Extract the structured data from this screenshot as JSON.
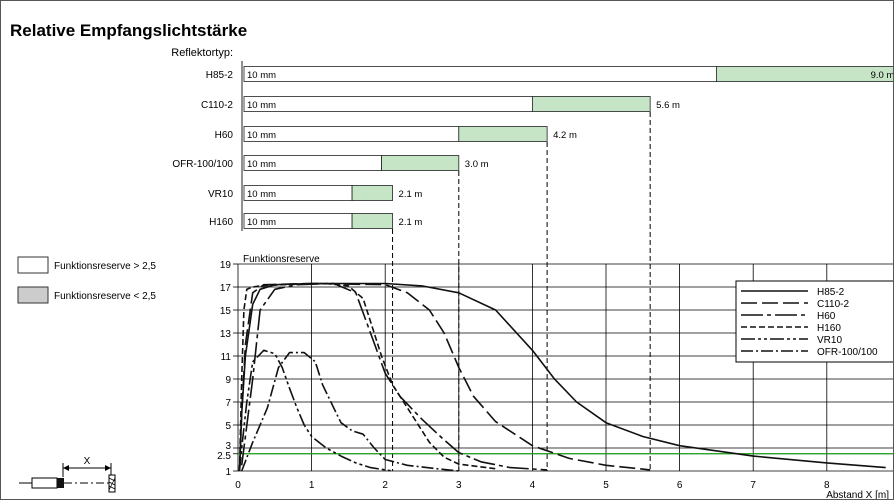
{
  "title": "Relative Empfangslichtstärke",
  "legend_boxes": [
    {
      "label": "Funktionsreserve > 2,5",
      "color": "#ffffff"
    },
    {
      "label": "Funktionsreserve < 2,5",
      "color": "#cccccc"
    }
  ],
  "colors": {
    "green": "#c6e5c6",
    "green_line": "#119911",
    "axis": "#000000"
  },
  "chart_data": [
    {
      "type": "bar",
      "title": "Reflektortyp:",
      "categories": [
        "H85-2",
        "C110-2",
        "H60",
        "OFR-100/100",
        "VR10",
        "H160"
      ],
      "series": [
        {
          "start_label": "10 mm",
          "white_end": 6.5,
          "green_end": 9.0,
          "end_label": "9.0 m"
        },
        {
          "start_label": "10 mm",
          "white_end": 4.0,
          "green_end": 5.6,
          "end_label": "5.6 m"
        },
        {
          "start_label": "10 mm",
          "white_end": 3.0,
          "green_end": 4.2,
          "end_label": "4.2 m"
        },
        {
          "start_label": "10 mm",
          "white_end": 1.95,
          "green_end": 3.0,
          "end_label": "3.0 m"
        },
        {
          "start_label": "10 mm",
          "white_end": 1.55,
          "green_end": 2.1,
          "end_label": "2.1 m"
        },
        {
          "start_label": "10 mm",
          "white_end": 1.55,
          "green_end": 2.1,
          "end_label": "2.1 m"
        }
      ]
    },
    {
      "type": "line",
      "ylabel": "Funktionsreserve",
      "xlabel": "Abstand X [m]",
      "xlim": [
        0,
        9
      ],
      "ylim": [
        1,
        19
      ],
      "x_ticks": [
        "0",
        "1",
        "2",
        "3",
        "4",
        "5",
        "6",
        "7",
        "8",
        "9"
      ],
      "y_ticks": [
        "1",
        "2.5",
        "3",
        "5",
        "7",
        "9",
        "11",
        "13",
        "15",
        "17",
        "19"
      ],
      "threshold": 2.5,
      "legend": "top-right",
      "series": [
        {
          "name": "H85-2",
          "dash": "",
          "points": [
            [
              0.02,
              1
            ],
            [
              0.05,
              6
            ],
            [
              0.1,
              11
            ],
            [
              0.2,
              15.5
            ],
            [
              0.3,
              16.8
            ],
            [
              0.5,
              17.2
            ],
            [
              1,
              17.3
            ],
            [
              2,
              17.3
            ],
            [
              2.5,
              17.1
            ],
            [
              3,
              16.5
            ],
            [
              3.5,
              15
            ],
            [
              4,
              11.5
            ],
            [
              4.3,
              9
            ],
            [
              4.6,
              7
            ],
            [
              5,
              5.2
            ],
            [
              5.5,
              4
            ],
            [
              6,
              3.2
            ],
            [
              7,
              2.3
            ],
            [
              8,
              1.7
            ],
            [
              8.8,
              1.3
            ]
          ]
        },
        {
          "name": "C110-2",
          "dash": "16,5",
          "points": [
            [
              0.02,
              1
            ],
            [
              0.05,
              6
            ],
            [
              0.1,
              12
            ],
            [
              0.2,
              16.5
            ],
            [
              0.35,
              17.2
            ],
            [
              1,
              17.3
            ],
            [
              2,
              17.2
            ],
            [
              2.3,
              16.5
            ],
            [
              2.6,
              15
            ],
            [
              2.8,
              13
            ],
            [
              3,
              10
            ],
            [
              3.2,
              7.5
            ],
            [
              3.5,
              5.3
            ],
            [
              4,
              3.2
            ],
            [
              4.5,
              2.1
            ],
            [
              5,
              1.5
            ],
            [
              5.6,
              1.1
            ]
          ]
        },
        {
          "name": "H60",
          "dash": "22,4,4,4",
          "points": [
            [
              0.05,
              1.5
            ],
            [
              0.1,
              4
            ],
            [
              0.2,
              9
            ],
            [
              0.3,
              15
            ],
            [
              0.5,
              16.8
            ],
            [
              0.8,
              17.2
            ],
            [
              1.3,
              17.3
            ],
            [
              1.6,
              16.5
            ],
            [
              1.8,
              13
            ],
            [
              2,
              9.5
            ],
            [
              2.2,
              7.5
            ],
            [
              2.5,
              5.5
            ],
            [
              2.8,
              3.7
            ],
            [
              3,
              2.6
            ],
            [
              3.3,
              1.8
            ],
            [
              3.7,
              1.3
            ],
            [
              4.2,
              1.1
            ]
          ]
        },
        {
          "name": "H160",
          "dash": "6,3",
          "points": [
            [
              0.02,
              1
            ],
            [
              0.05,
              9
            ],
            [
              0.08,
              15
            ],
            [
              0.12,
              16.8
            ],
            [
              0.2,
              17
            ],
            [
              0.3,
              17.1
            ],
            [
              0.6,
              17.2
            ],
            [
              1.2,
              17.3
            ],
            [
              1.5,
              17.1
            ],
            [
              1.7,
              16
            ],
            [
              1.8,
              14
            ],
            [
              1.95,
              11
            ],
            [
              2.1,
              8.5
            ],
            [
              2.35,
              6
            ],
            [
              2.6,
              3.5
            ],
            [
              2.8,
              2.2
            ],
            [
              3,
              1.6
            ],
            [
              3.5,
              1.2
            ]
          ]
        },
        {
          "name": "VR10",
          "dash": "14,3,3,3,3,3",
          "points": [
            [
              0.02,
              1
            ],
            [
              0.05,
              3
            ],
            [
              0.12,
              7
            ],
            [
              0.2,
              10.5
            ],
            [
              0.35,
              11.5
            ],
            [
              0.5,
              11.2
            ],
            [
              0.6,
              10
            ],
            [
              0.7,
              8.2
            ],
            [
              0.8,
              6.5
            ],
            [
              0.9,
              5
            ],
            [
              1,
              4
            ],
            [
              1.2,
              3
            ],
            [
              1.4,
              2.3
            ],
            [
              1.6,
              1.7
            ],
            [
              1.8,
              1.3
            ],
            [
              2.1,
              1
            ]
          ]
        },
        {
          "name": "OFR-100/100",
          "dash": "12,3,2,3",
          "points": [
            [
              0.05,
              1
            ],
            [
              0.2,
              3.5
            ],
            [
              0.4,
              6.5
            ],
            [
              0.55,
              10
            ],
            [
              0.7,
              11.3
            ],
            [
              0.9,
              11.3
            ],
            [
              1.05,
              10.5
            ],
            [
              1.15,
              8.5
            ],
            [
              1.3,
              6.5
            ],
            [
              1.4,
              5.2
            ],
            [
              1.55,
              4.5
            ],
            [
              1.7,
              4.2
            ],
            [
              1.85,
              3
            ],
            [
              2,
              2
            ],
            [
              2.3,
              1.5
            ],
            [
              2.7,
              1.2
            ],
            [
              3,
              1
            ]
          ]
        }
      ]
    }
  ],
  "sensor_diagram": {
    "x_label": "X"
  }
}
